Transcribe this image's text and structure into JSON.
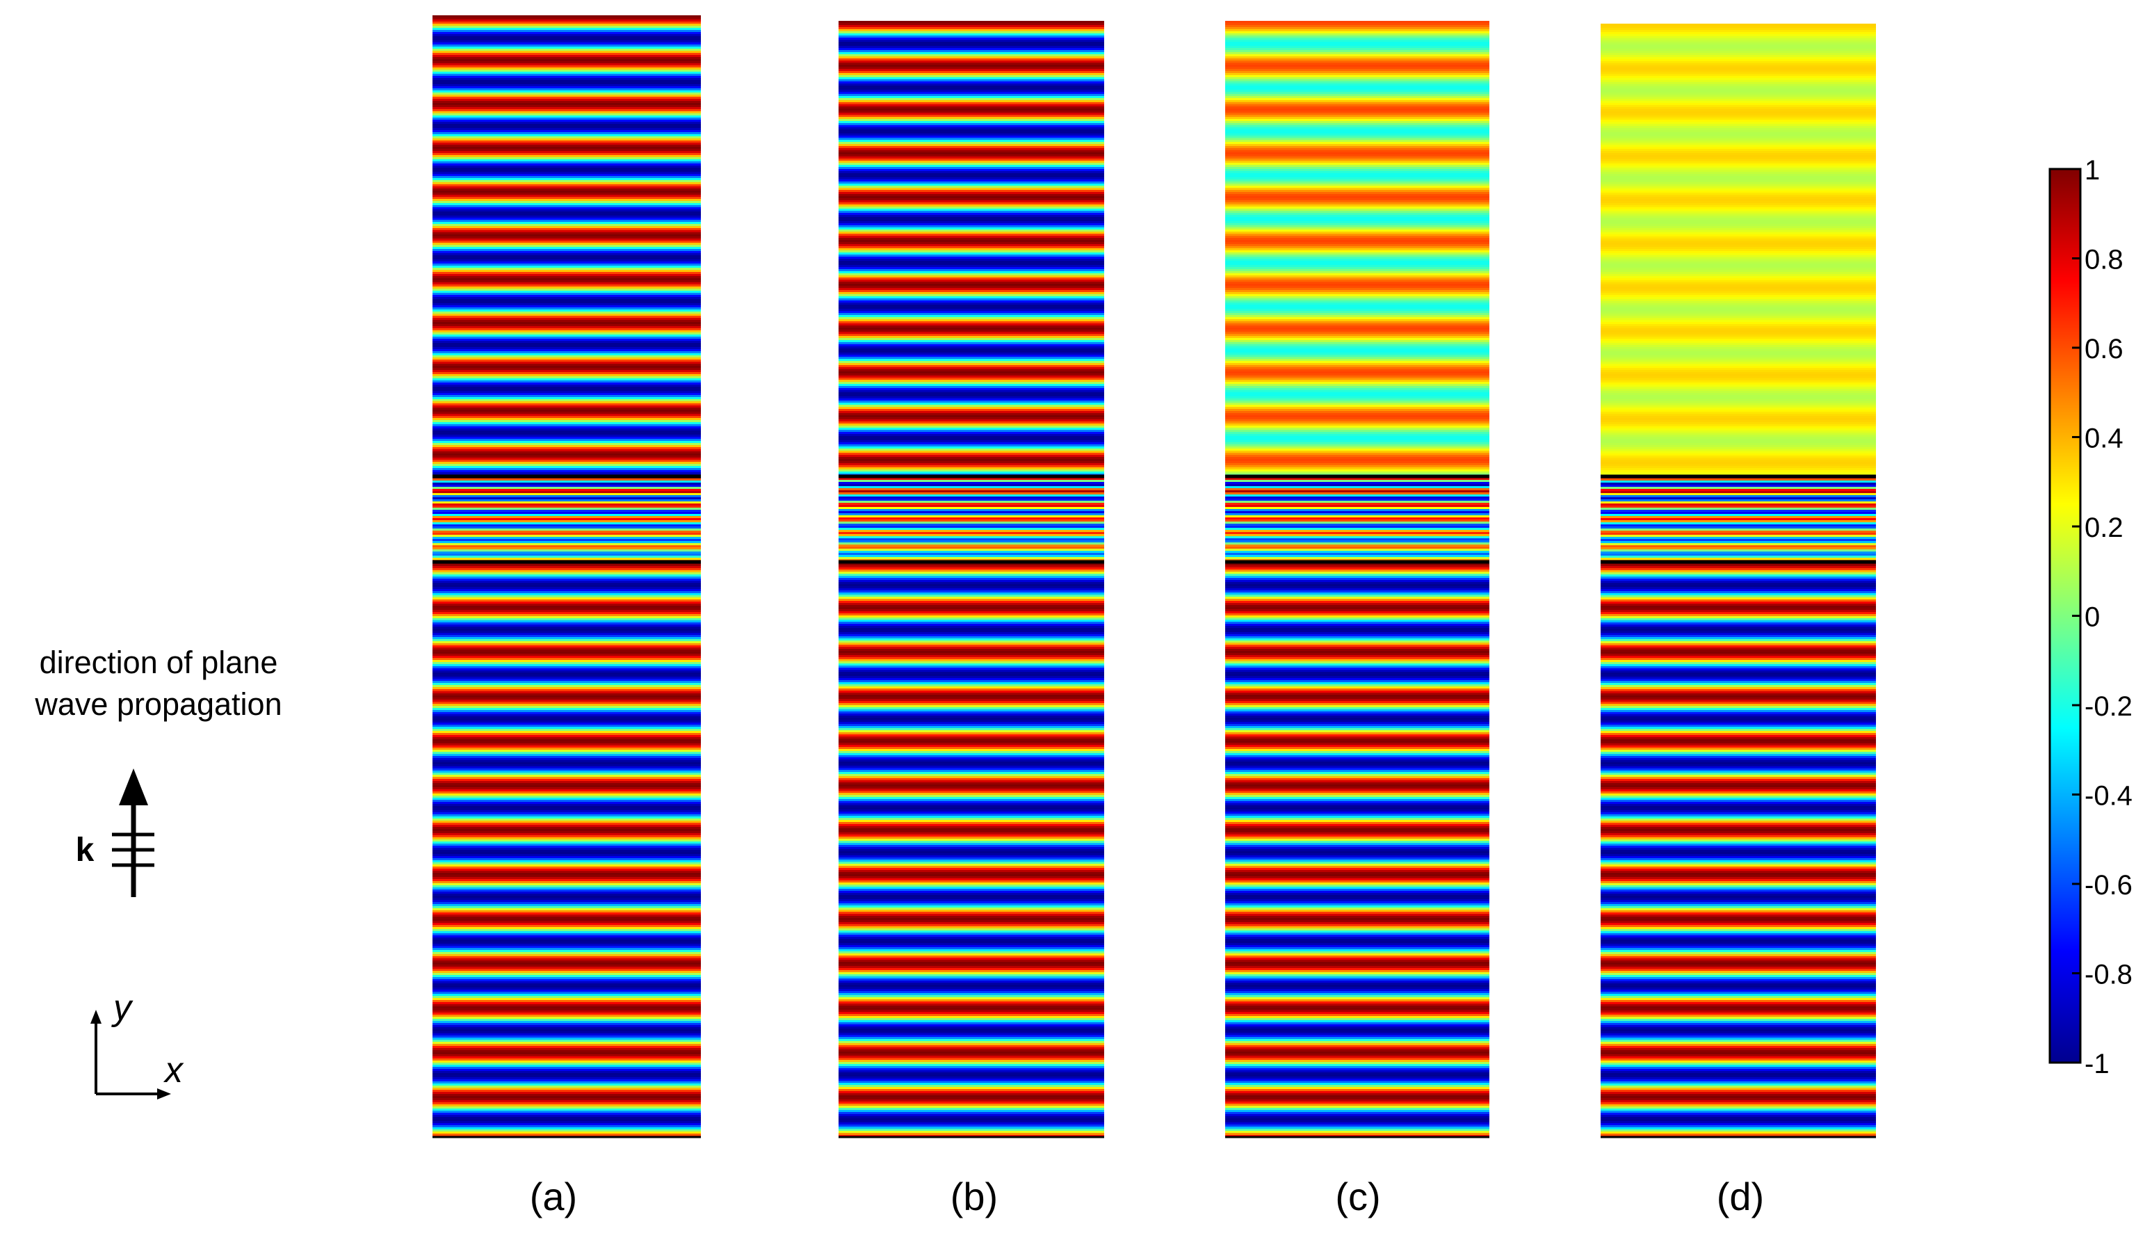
{
  "left_annotation": {
    "text_line1": "direction of plane",
    "text_line2": "wave propagation",
    "wave_vector_label": "k",
    "axis_y_label": "y",
    "axis_x_label": "x",
    "arrow_icon": "up-arrow-with-wavefronts"
  },
  "panels": [
    {
      "label": "(a)",
      "top_amplitude": 1.0,
      "top_offset": 0.0,
      "lower_amplitude": 1.0,
      "top_period_units": 1.0,
      "lower_period_units": 1.0
    },
    {
      "label": "(b)",
      "top_amplitude": 1.0,
      "top_offset": 0.0,
      "lower_amplitude": 1.0,
      "top_period_units": 1.0,
      "lower_period_units": 1.0
    },
    {
      "label": "(c)",
      "top_amplitude": 0.42,
      "top_offset": 0.2,
      "lower_amplitude": 1.0,
      "top_period_units": 1.0,
      "lower_period_units": 1.0
    },
    {
      "label": "(d)",
      "top_amplitude": 0.12,
      "top_offset": 0.22,
      "lower_amplitude": 1.0,
      "top_period_units": 1.0,
      "lower_period_units": 1.0
    }
  ],
  "colorbar": {
    "min": -1,
    "max": 1,
    "ticks": [
      "1",
      "0.8",
      "0.6",
      "0.4",
      "0.2",
      "0",
      "-0.2",
      "-0.4",
      "-0.6",
      "-0.8",
      "-1"
    ]
  },
  "colors": {
    "jet_dark_blue": "#00008f",
    "jet_blue": "#0000ff",
    "jet_cyan": "#00ffff",
    "jet_yellow": "#ffff00",
    "jet_red": "#ff0000",
    "jet_dark_red": "#800000",
    "interface_line": "#000000"
  }
}
